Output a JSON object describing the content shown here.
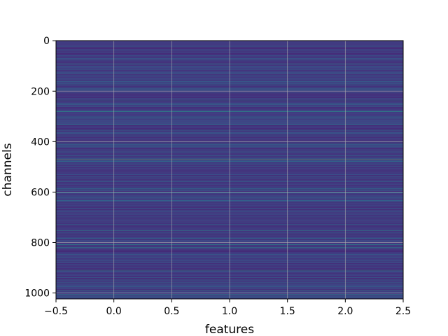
{
  "chart_data": {
    "type": "heatmap",
    "title": "",
    "xlabel": "features",
    "ylabel": "channels",
    "x_extent": [
      -0.5,
      2.5
    ],
    "y_extent": [
      -0.5,
      1023.5
    ],
    "y_inverted": true,
    "xticks": [
      -0.5,
      0.0,
      0.5,
      1.0,
      1.5,
      2.0,
      2.5
    ],
    "xtick_labels": [
      "−0.5",
      "0.0",
      "0.5",
      "1.0",
      "1.5",
      "2.0",
      "2.5"
    ],
    "yticks": [
      0,
      200,
      400,
      600,
      800,
      1000
    ],
    "ytick_labels": [
      "0",
      "200",
      "400",
      "600",
      "800",
      "1000"
    ],
    "grid": true,
    "colormap": "viridis",
    "n_rows": 1024,
    "n_cols": 3,
    "row_profile": "each channel row uniform across all 3 feature columns; values mostly low (dark blue/purple) with scattered teal/green bright rows; brightest near channel ~471",
    "bright_rows": [
      {
        "row": 93,
        "value": 0.55
      },
      {
        "row": 196,
        "value": 0.45
      },
      {
        "row": 238,
        "value": 0.5
      },
      {
        "row": 251,
        "value": 0.5
      },
      {
        "row": 282,
        "value": 0.6
      },
      {
        "row": 471,
        "value": 0.78
      },
      {
        "row": 604,
        "value": 0.5
      },
      {
        "row": 752,
        "value": 0.55
      },
      {
        "row": 808,
        "value": 0.55
      },
      {
        "row": 821,
        "value": 0.5
      },
      {
        "row": 910,
        "value": 0.55
      },
      {
        "row": 991,
        "value": 0.6
      },
      {
        "row": 1005,
        "value": 0.5
      }
    ]
  },
  "colors": {
    "grid": "#b0b0b0",
    "axis": "#000000",
    "background": "#ffffff"
  }
}
